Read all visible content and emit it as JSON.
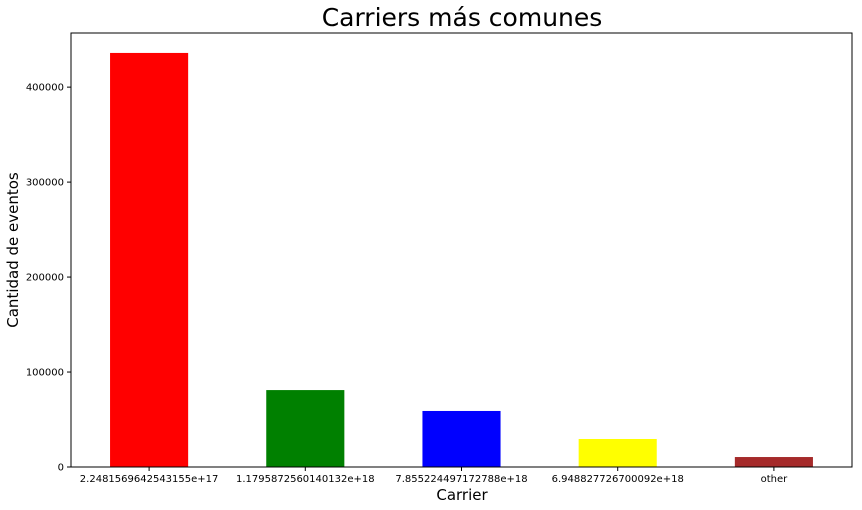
{
  "chart_data": {
    "type": "bar",
    "title": "Carriers más comunes",
    "xlabel": "Carrier",
    "ylabel": "Cantidad de eventos",
    "categories": [
      "2.2481569642543155e+17",
      "1.1795872560140132e+18",
      "7.855224497172788e+18",
      "6.948827726700092e+18",
      "other"
    ],
    "values": [
      436000,
      81000,
      59000,
      29500,
      10500
    ],
    "colors": [
      "#ff0000",
      "#008000",
      "#0000ff",
      "#ffff00",
      "#a52a2a"
    ],
    "ylim": [
      0,
      457000
    ],
    "yticks": [
      0,
      100000,
      200000,
      300000,
      400000
    ],
    "ytick_labels": [
      "0",
      "100000",
      "200000",
      "300000",
      "400000"
    ],
    "grid": false,
    "legend": "none"
  }
}
